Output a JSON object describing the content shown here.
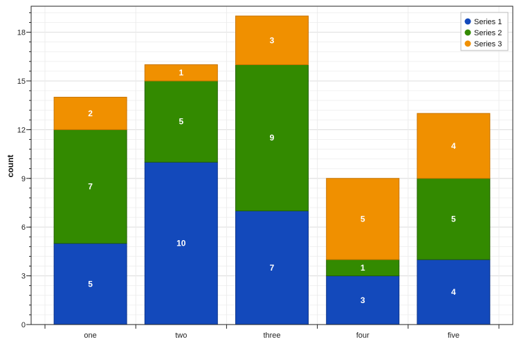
{
  "chart_data": {
    "type": "bar",
    "stacked": true,
    "categories": [
      "one",
      "two",
      "three",
      "four",
      "five"
    ],
    "series": [
      {
        "name": "Series 1",
        "color": "#1349bb",
        "values": [
          5,
          10,
          7,
          3,
          4
        ]
      },
      {
        "name": "Series 2",
        "color": "#338a00",
        "values": [
          7,
          5,
          9,
          1,
          5
        ]
      },
      {
        "name": "Series 3",
        "color": "#f09000",
        "values": [
          2,
          1,
          3,
          5,
          4
        ]
      }
    ],
    "title": "",
    "xlabel": "",
    "ylabel": "count",
    "ylim": [
      0,
      19.6
    ],
    "yticks": [
      0,
      3,
      6,
      9,
      12,
      15,
      18
    ],
    "grid": true,
    "legend_position": "top-right",
    "data_labels": true
  }
}
